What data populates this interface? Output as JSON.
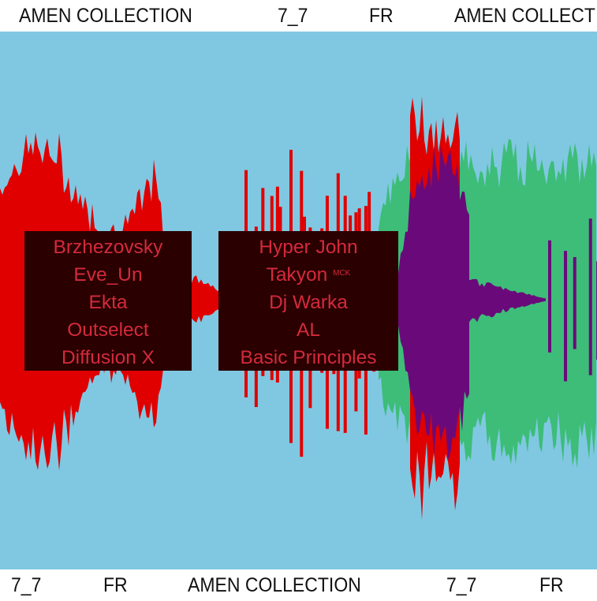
{
  "marquee": {
    "top": [
      "AMEN COLLECTION",
      "7_7",
      "FR",
      "AMEN COLLECTION"
    ],
    "bottom": [
      "7_7",
      "FR",
      "AMEN COLLECTION",
      "7_7",
      "FR"
    ]
  },
  "lineups": [
    {
      "artists": [
        "Brzhezovsky",
        "Eve_Un",
        "Ekta",
        "Outselect",
        "Diffusion X"
      ]
    },
    {
      "artists": [
        "Hyper John",
        "Takyon",
        "Dj Warka",
        "AL",
        "Basic Principles"
      ],
      "tag": "MCK"
    }
  ],
  "colors": {
    "background": "#80c8e2",
    "red": "#e00000",
    "green": "#3dbd78",
    "purple": "#6a0a7a",
    "box": "#2a0000",
    "text": "#d42a3c"
  }
}
